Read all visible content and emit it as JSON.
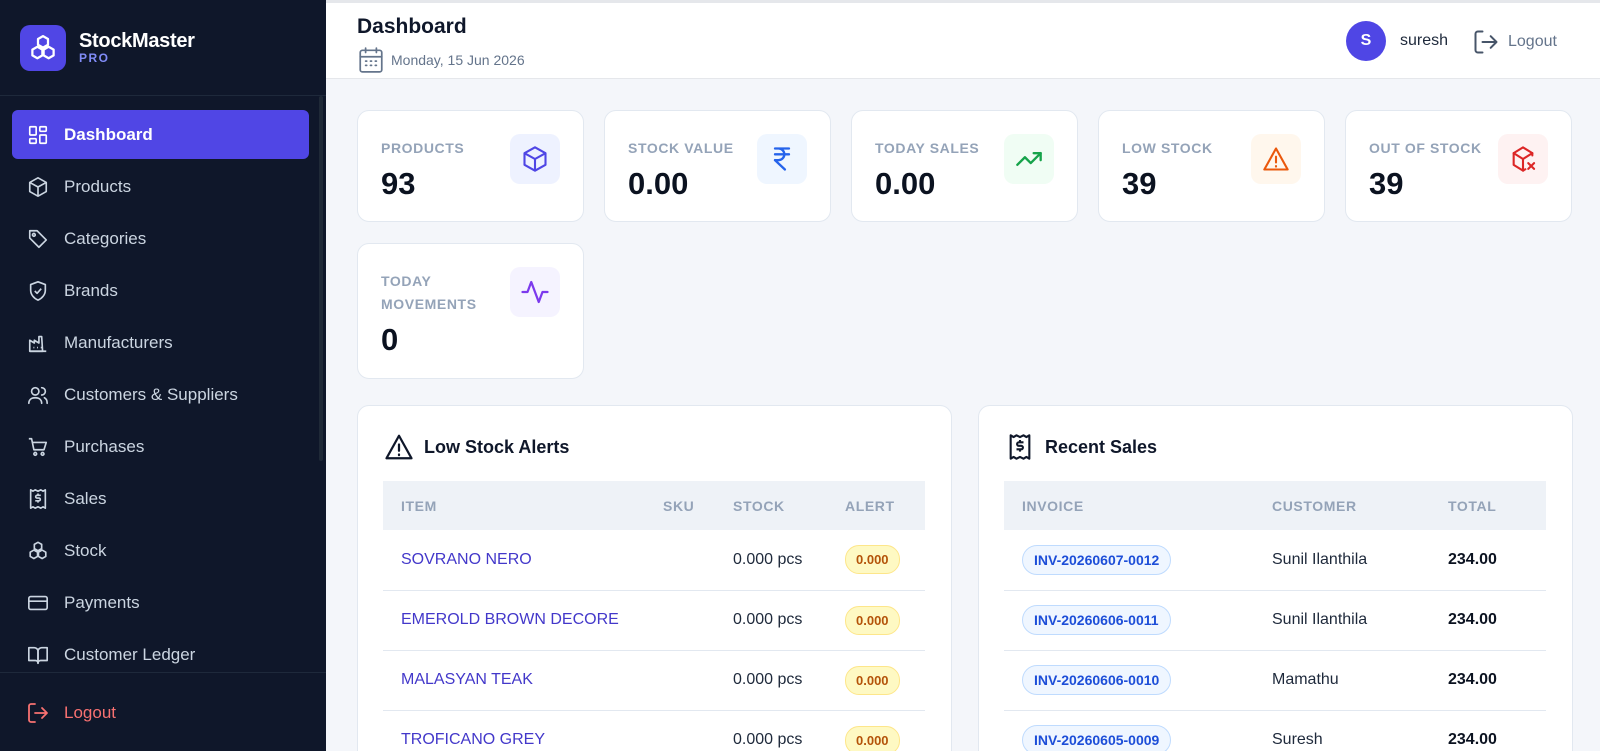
{
  "brand": {
    "name": "StockMaster",
    "tier": "PRO"
  },
  "sidebar": {
    "items": [
      {
        "label": "Dashboard",
        "icon": "dashboard-icon",
        "active": true
      },
      {
        "label": "Products",
        "icon": "box-icon"
      },
      {
        "label": "Categories",
        "icon": "tag-icon"
      },
      {
        "label": "Brands",
        "icon": "shield-check-icon"
      },
      {
        "label": "Manufacturers",
        "icon": "factory-icon"
      },
      {
        "label": "Customers & Suppliers",
        "icon": "users-icon"
      },
      {
        "label": "Purchases",
        "icon": "cart-icon"
      },
      {
        "label": "Sales",
        "icon": "receipt-dollar-icon"
      },
      {
        "label": "Stock",
        "icon": "boxes-icon"
      },
      {
        "label": "Payments",
        "icon": "credit-card-icon"
      },
      {
        "label": "Customer Ledger",
        "icon": "book-open-icon"
      }
    ],
    "logout_label": "Logout"
  },
  "header": {
    "title": "Dashboard",
    "date": "Monday, 15 Jun 2026",
    "user_initial": "S",
    "username": "suresh",
    "logout_label": "Logout"
  },
  "stats": [
    {
      "label": "PRODUCTS",
      "value": "93",
      "icon": "box-icon",
      "color": "#4f46e5",
      "bg": "#eef2ff"
    },
    {
      "label": "STOCK VALUE",
      "value": "0.00",
      "icon": "rupee-icon",
      "color": "#2563eb",
      "bg": "#eff6ff"
    },
    {
      "label": "TODAY SALES",
      "value": "0.00",
      "icon": "trending-up-icon",
      "color": "#16a34a",
      "bg": "#f0fdf4"
    },
    {
      "label": "LOW STOCK",
      "value": "39",
      "icon": "alert-triangle-icon",
      "color": "#ea580c",
      "bg": "#fff7ed"
    },
    {
      "label": "OUT OF STOCK",
      "value": "39",
      "icon": "package-x-icon",
      "color": "#dc2626",
      "bg": "#fef2f2"
    },
    {
      "label_line1": "TODAY",
      "label_line2": "MOVEMENTS",
      "value": "0",
      "icon": "activity-icon",
      "color": "#7c3aed",
      "bg": "#f5f3ff"
    }
  ],
  "low_stock": {
    "title": "Low Stock Alerts",
    "columns": [
      "ITEM",
      "SKU",
      "STOCK",
      "ALERT"
    ],
    "rows": [
      {
        "item": "SOVRANO NERO",
        "sku": "",
        "stock": "0.000 pcs",
        "alert": "0.000"
      },
      {
        "item": "EMEROLD BROWN DECORE",
        "sku": "",
        "stock": "0.000 pcs",
        "alert": "0.000"
      },
      {
        "item": "MALASYAN TEAK",
        "sku": "",
        "stock": "0.000 pcs",
        "alert": "0.000"
      },
      {
        "item": "TROFICANO GREY",
        "sku": "",
        "stock": "0.000 pcs",
        "alert": "0.000"
      }
    ]
  },
  "recent_sales": {
    "title": "Recent Sales",
    "columns": [
      "INVOICE",
      "CUSTOMER",
      "TOTAL"
    ],
    "rows": [
      {
        "invoice": "INV-20260607-0012",
        "customer": "Sunil Ilanthila",
        "total": "234.00"
      },
      {
        "invoice": "INV-20260606-0011",
        "customer": "Sunil Ilanthila",
        "total": "234.00"
      },
      {
        "invoice": "INV-20260606-0010",
        "customer": "Mamathu",
        "total": "234.00"
      },
      {
        "invoice": "INV-20260605-0009",
        "customer": "Suresh",
        "total": "234.00"
      }
    ]
  }
}
